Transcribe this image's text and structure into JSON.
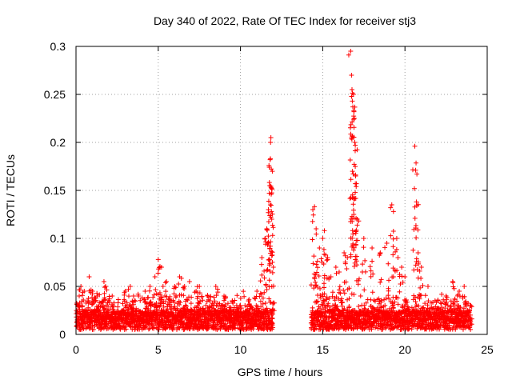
{
  "chart_data": {
    "type": "scatter",
    "title": "Day 340 of 2022, Rate Of TEC Index for receiver stj3",
    "xlabel": "GPS time / hours",
    "ylabel": "ROTI / TECUs",
    "xlim": [
      0,
      25
    ],
    "ylim": [
      0,
      0.3
    ],
    "xticks": [
      0,
      5,
      10,
      15,
      20,
      25
    ],
    "yticks": [
      0,
      0.05,
      0.1,
      0.15,
      0.2,
      0.25,
      0.3
    ],
    "xtick_labels": [
      "0",
      "5",
      "10",
      "15",
      "20",
      "25"
    ],
    "ytick_labels": [
      "0",
      "0.05",
      "0.1",
      "0.15",
      "0.2",
      "0.25",
      "0.3"
    ],
    "grid": true,
    "legend": "none",
    "marker": "plus",
    "color": "#ff0000",
    "data_gap_hours": [
      12.0,
      14.3
    ],
    "baseline_band": [
      0.005,
      0.025
    ],
    "points": [
      [
        0.3,
        0.05
      ],
      [
        0.5,
        0.045
      ],
      [
        0.8,
        0.06
      ],
      [
        1.0,
        0.045
      ],
      [
        1.3,
        0.04
      ],
      [
        1.7,
        0.055
      ],
      [
        1.8,
        0.05
      ],
      [
        2.2,
        0.04
      ],
      [
        3.0,
        0.045
      ],
      [
        3.3,
        0.05
      ],
      [
        3.5,
        0.04
      ],
      [
        3.8,
        0.04
      ],
      [
        4.2,
        0.045
      ],
      [
        4.5,
        0.05
      ],
      [
        4.8,
        0.06
      ],
      [
        5.0,
        0.078
      ],
      [
        5.2,
        0.07
      ],
      [
        5.5,
        0.055
      ],
      [
        6.0,
        0.05
      ],
      [
        6.3,
        0.06
      ],
      [
        6.6,
        0.05
      ],
      [
        6.9,
        0.055
      ],
      [
        7.3,
        0.045
      ],
      [
        7.5,
        0.05
      ],
      [
        8.0,
        0.04
      ],
      [
        8.5,
        0.05
      ],
      [
        9.0,
        0.04
      ],
      [
        9.5,
        0.035
      ],
      [
        10.0,
        0.03
      ],
      [
        10.5,
        0.035
      ],
      [
        11.0,
        0.045
      ],
      [
        11.3,
        0.08
      ],
      [
        11.5,
        0.1
      ],
      [
        11.6,
        0.11
      ],
      [
        11.7,
        0.13
      ],
      [
        11.75,
        0.147
      ],
      [
        11.78,
        0.155
      ],
      [
        11.8,
        0.182
      ],
      [
        11.82,
        0.183
      ],
      [
        11.83,
        0.2
      ],
      [
        11.85,
        0.205
      ],
      [
        11.9,
        0.12
      ],
      [
        12.0,
        0.07
      ],
      [
        14.4,
        0.13
      ],
      [
        14.5,
        0.133
      ],
      [
        14.6,
        0.11
      ],
      [
        14.8,
        0.09
      ],
      [
        15.0,
        0.1
      ],
      [
        15.1,
        0.108
      ],
      [
        15.3,
        0.08
      ],
      [
        15.5,
        0.06
      ],
      [
        15.8,
        0.07
      ],
      [
        16.0,
        0.065
      ],
      [
        16.3,
        0.085
      ],
      [
        16.5,
        0.08
      ],
      [
        16.7,
        0.295
      ],
      [
        16.75,
        0.27
      ],
      [
        16.78,
        0.255
      ],
      [
        16.8,
        0.243
      ],
      [
        16.83,
        0.237
      ],
      [
        16.87,
        0.25
      ],
      [
        16.9,
        0.232
      ],
      [
        16.92,
        0.225
      ],
      [
        16.95,
        0.2
      ],
      [
        16.98,
        0.197
      ],
      [
        17.0,
        0.165
      ],
      [
        17.05,
        0.157
      ],
      [
        17.1,
        0.12
      ],
      [
        17.5,
        0.1
      ],
      [
        18.0,
        0.09
      ],
      [
        18.5,
        0.085
      ],
      [
        18.9,
        0.095
      ],
      [
        19.2,
        0.135
      ],
      [
        19.3,
        0.128
      ],
      [
        19.5,
        0.1
      ],
      [
        19.8,
        0.07
      ],
      [
        20.0,
        0.06
      ],
      [
        20.6,
        0.196
      ],
      [
        20.65,
        0.171
      ],
      [
        20.7,
        0.138
      ],
      [
        20.8,
        0.085
      ],
      [
        21.0,
        0.07
      ],
      [
        21.4,
        0.05
      ],
      [
        22.0,
        0.035
      ],
      [
        22.5,
        0.04
      ],
      [
        22.9,
        0.055
      ],
      [
        23.3,
        0.045
      ],
      [
        23.6,
        0.05
      ],
      [
        24.0,
        0.03
      ]
    ]
  }
}
